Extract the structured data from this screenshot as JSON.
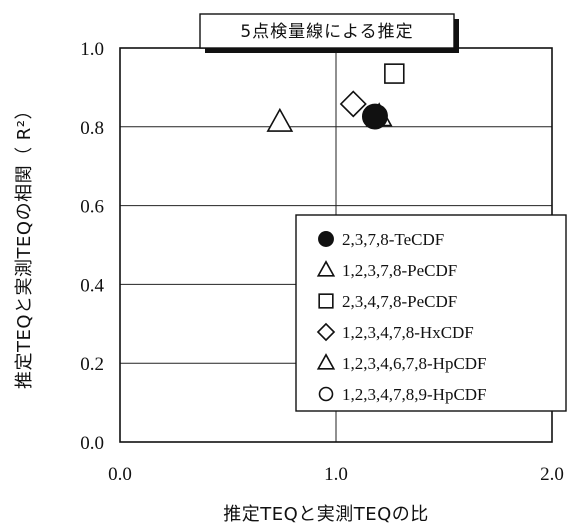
{
  "chart_data": {
    "type": "scatter",
    "title": "5点検量線による推定",
    "xlabel": "推定TEQと実測TEQの比",
    "ylabel": "推定TEQと実測TEQの相関（ R²）",
    "xlim": [
      0.0,
      2.0
    ],
    "ylim": [
      0.0,
      1.0
    ],
    "x_ticks": [
      "0.0",
      "1.0",
      "2.0"
    ],
    "y_ticks": [
      "0.0",
      "0.2",
      "0.4",
      "0.6",
      "0.8",
      "1.0"
    ],
    "grid": true,
    "legend_position": "right",
    "series": [
      {
        "name": "2,3,7,8-TeCDF",
        "marker": "filled-circle",
        "x": 1.18,
        "y": 0.826
      },
      {
        "name": "1,2,3,7,8-PeCDF",
        "marker": "triangle",
        "x": 0.74,
        "y": 0.812
      },
      {
        "name": "2,3,4,7,8-PeCDF",
        "marker": "square",
        "x": 1.27,
        "y": 0.935
      },
      {
        "name": "1,2,3,4,7,8-HxCDF",
        "marker": "diamond",
        "x": 1.08,
        "y": 0.858
      },
      {
        "name": "1,2,3,4,6,7,8-HpCDF",
        "marker": "triangle",
        "x": 1.2,
        "y": 0.826
      },
      {
        "name": "1,2,3,4,7,8,9-HpCDF",
        "marker": "circle",
        "x": 1.19,
        "y": 0.829
      }
    ]
  }
}
